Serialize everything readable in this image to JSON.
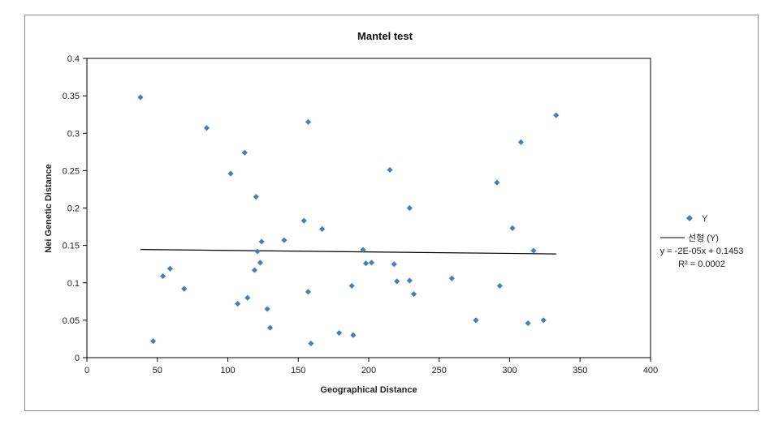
{
  "chart_data": {
    "type": "scatter",
    "title": "Mantel test",
    "xlabel": "Geographical  Distance",
    "ylabel": "Nei Genetic Distance",
    "xlim": [
      0,
      400
    ],
    "ylim": [
      0,
      0.4
    ],
    "x_ticks": [
      "0",
      "50",
      "100",
      "150",
      "200",
      "250",
      "300",
      "350",
      "400"
    ],
    "y_ticks": [
      "0",
      "0.05",
      "0.1",
      "0.15",
      "0.2",
      "0.25",
      "0.3",
      "0.35",
      "0.4"
    ],
    "grid": false,
    "legend_position": "right",
    "series": [
      {
        "name": "Y",
        "color": "#4a7ebb",
        "marker": "diamond",
        "points": [
          [
            38,
            0.348
          ],
          [
            47,
            0.022
          ],
          [
            54,
            0.109
          ],
          [
            59,
            0.119
          ],
          [
            69,
            0.092
          ],
          [
            85,
            0.307
          ],
          [
            102,
            0.246
          ],
          [
            107,
            0.072
          ],
          [
            112,
            0.274
          ],
          [
            114,
            0.08
          ],
          [
            119,
            0.117
          ],
          [
            120,
            0.215
          ],
          [
            121,
            0.142
          ],
          [
            123,
            0.127
          ],
          [
            124,
            0.155
          ],
          [
            128,
            0.065
          ],
          [
            130,
            0.04
          ],
          [
            140,
            0.157
          ],
          [
            154,
            0.183
          ],
          [
            157,
            0.315
          ],
          [
            157,
            0.088
          ],
          [
            159,
            0.019
          ],
          [
            167,
            0.172
          ],
          [
            179,
            0.033
          ],
          [
            188,
            0.096
          ],
          [
            189,
            0.03
          ],
          [
            196,
            0.144
          ],
          [
            198,
            0.126
          ],
          [
            202,
            0.127
          ],
          [
            215,
            0.251
          ],
          [
            218,
            0.125
          ],
          [
            220,
            0.102
          ],
          [
            229,
            0.2
          ],
          [
            229,
            0.103
          ],
          [
            232,
            0.085
          ],
          [
            259,
            0.106
          ],
          [
            276,
            0.05
          ],
          [
            291,
            0.234
          ],
          [
            293,
            0.096
          ],
          [
            302,
            0.173
          ],
          [
            308,
            0.288
          ],
          [
            313,
            0.046
          ],
          [
            317,
            0.143
          ],
          [
            324,
            0.05
          ],
          [
            333,
            0.324
          ]
        ]
      }
    ],
    "trendline": {
      "name": "선형 (Y)",
      "color": "#000000",
      "slope": -2e-05,
      "intercept": 0.1453,
      "x_range": [
        38,
        333
      ],
      "equation": "y = -2E-05x + 0.1453",
      "r_squared": "R² = 0.0002"
    }
  }
}
